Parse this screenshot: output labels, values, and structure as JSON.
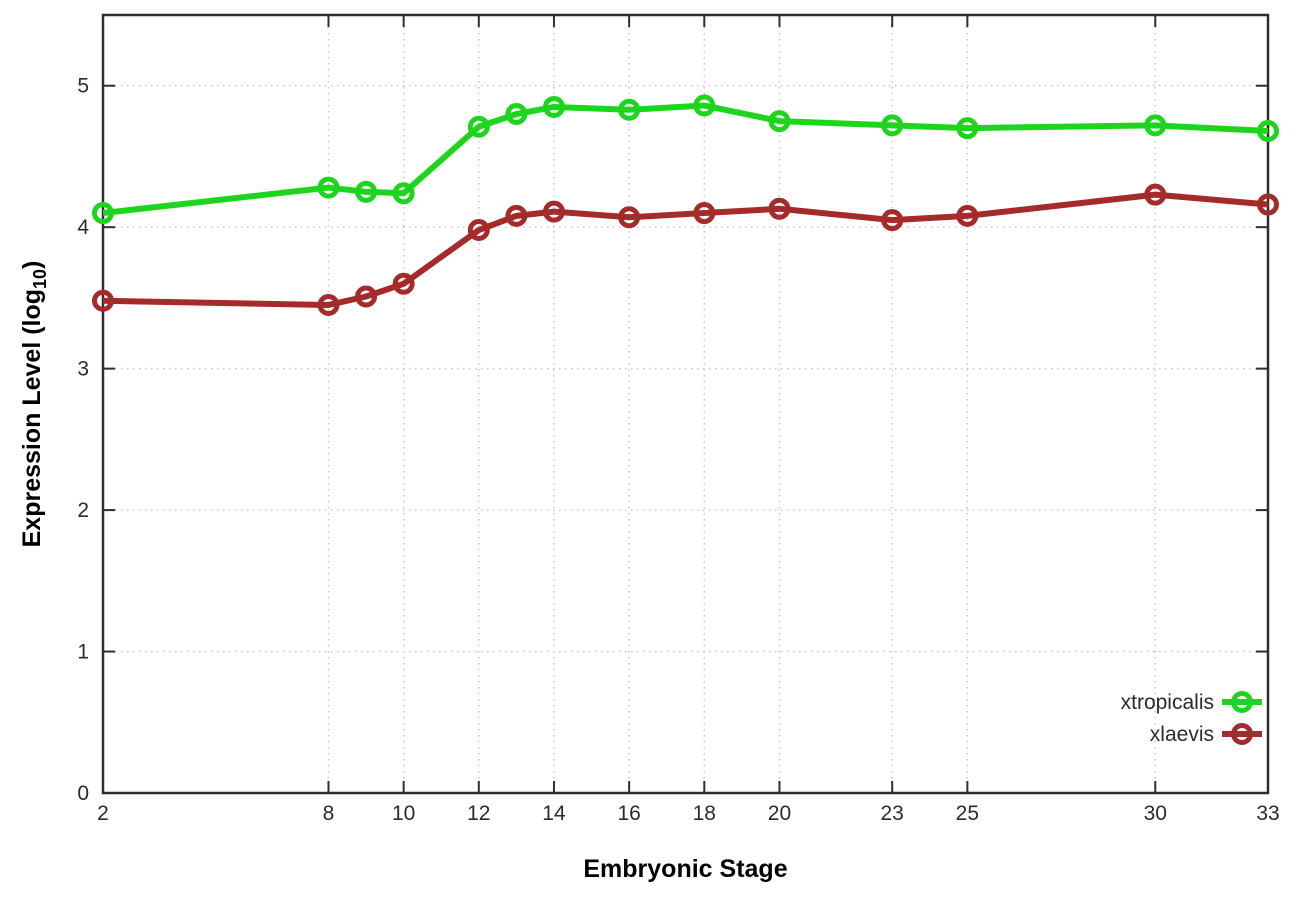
{
  "chart_data": {
    "type": "line",
    "title": "",
    "xlabel": "Embryonic Stage",
    "ylabel": {
      "prefix": "Expression Level (log",
      "sub": "10",
      "suffix": ")"
    },
    "x": [
      2,
      8,
      9,
      10,
      12,
      13,
      14,
      16,
      18,
      20,
      23,
      25,
      30,
      33
    ],
    "series": [
      {
        "name": "xtropicalis",
        "color": "#1dd51d",
        "values": [
          4.1,
          4.28,
          4.25,
          4.24,
          4.71,
          4.8,
          4.85,
          4.83,
          4.86,
          4.75,
          4.72,
          4.7,
          4.72,
          4.68
        ]
      },
      {
        "name": "xlaevis",
        "color": "#a52a2a",
        "values": [
          3.48,
          3.45,
          3.51,
          3.6,
          3.98,
          4.08,
          4.11,
          4.07,
          4.1,
          4.13,
          4.05,
          4.08,
          4.23,
          4.16
        ]
      }
    ],
    "x_ticks": [
      2,
      8,
      10,
      12,
      14,
      16,
      18,
      20,
      23,
      25,
      30,
      33
    ],
    "y_ticks": [
      0,
      1,
      2,
      3,
      4,
      5
    ],
    "xlim": [
      2,
      33
    ],
    "ylim": [
      0,
      5.5
    ],
    "grid": true,
    "legend_position": "inside-right-lower",
    "marker": "open-circle"
  },
  "colors": {
    "background": "#ffffff",
    "grid": "#c3c3c3",
    "border": "#2e2e2e",
    "tick_text": "#2b2b2b",
    "label_text": "#000000"
  }
}
